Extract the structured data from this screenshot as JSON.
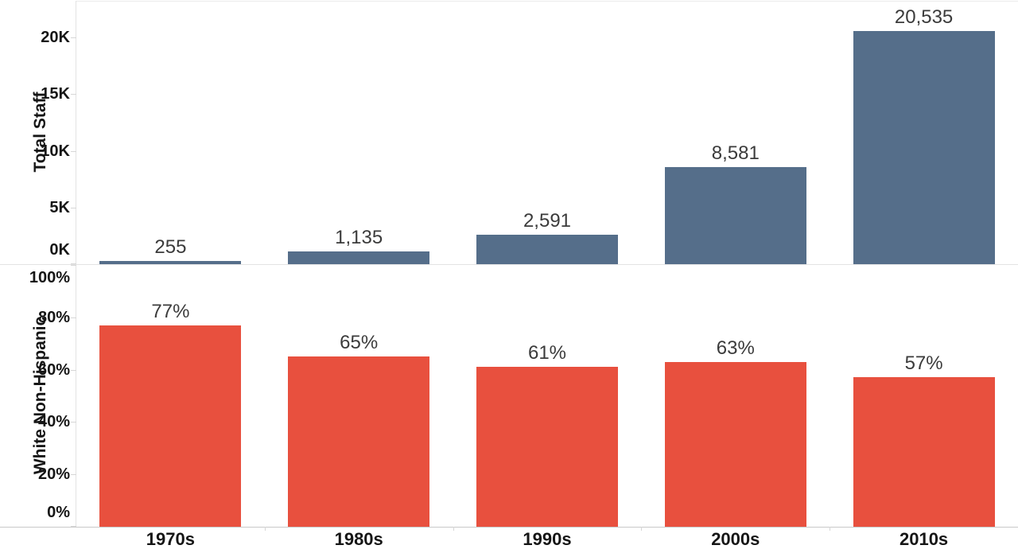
{
  "chart_data": [
    {
      "type": "bar",
      "pane": "top",
      "ylabel": "Total Staff",
      "categories": [
        "1970s",
        "1980s",
        "1990s",
        "2000s",
        "2010s"
      ],
      "values": [
        255,
        1135,
        2591,
        8581,
        20535
      ],
      "value_labels": [
        "255",
        "1,135",
        "2,591",
        "8,581",
        "20,535"
      ],
      "yticks": [
        0,
        5000,
        10000,
        15000,
        20000
      ],
      "ytick_labels": [
        "0K",
        "5K",
        "10K",
        "15K",
        "20K"
      ],
      "ylim": [
        0,
        23300
      ],
      "bar_color": "#556e8a",
      "grid": false,
      "legend": "none"
    },
    {
      "type": "bar",
      "pane": "bottom",
      "ylabel": "White Non-Hispanic",
      "categories": [
        "1970s",
        "1980s",
        "1990s",
        "2000s",
        "2010s"
      ],
      "values": [
        77,
        65,
        61,
        63,
        57
      ],
      "value_labels": [
        "77%",
        "65%",
        "61%",
        "63%",
        "57%"
      ],
      "yticks": [
        0,
        20,
        40,
        60,
        80,
        100
      ],
      "ytick_labels": [
        "0%",
        "20%",
        "40%",
        "60%",
        "80%",
        "100%"
      ],
      "ylim": [
        0,
        100
      ],
      "bar_color": "#e8503e",
      "grid": false,
      "legend": "none"
    }
  ]
}
